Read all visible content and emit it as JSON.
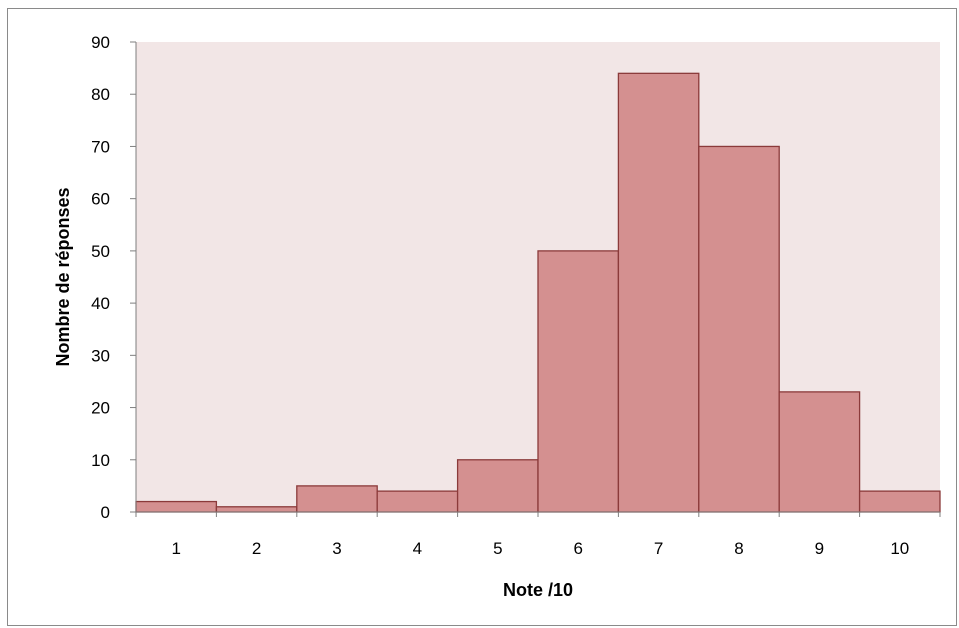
{
  "chart_data": {
    "type": "bar",
    "categories": [
      "1",
      "2",
      "3",
      "4",
      "5",
      "6",
      "7",
      "8",
      "9",
      "10"
    ],
    "values": [
      2,
      1,
      5,
      4,
      10,
      50,
      84,
      70,
      23,
      4
    ],
    "title": "",
    "xlabel": "Note /10",
    "ylabel": "Nombre de réponses",
    "ylim": [
      0,
      90
    ],
    "yticks": [
      "0",
      "10",
      "20",
      "30",
      "40",
      "50",
      "60",
      "70",
      "80",
      "90"
    ],
    "grid": false,
    "legend": "none",
    "colors": {
      "plot_background": "#f2e6e6",
      "bar_fill": "#d49090",
      "bar_stroke": "#8b3a3a",
      "axis": "#7f7f7f"
    }
  }
}
